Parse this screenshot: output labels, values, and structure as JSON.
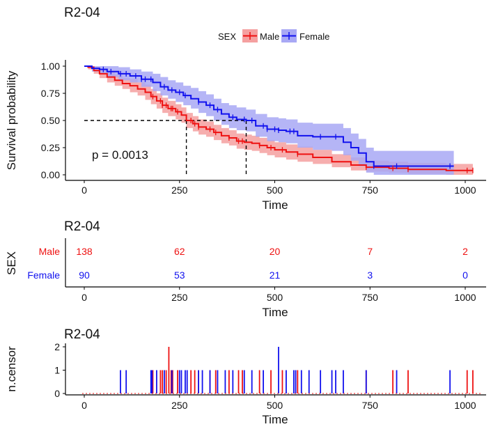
{
  "chart_data": [
    {
      "type": "line",
      "title": "R2-04",
      "xlabel": "Time",
      "ylabel": "Survival probability",
      "xlim": [
        -50,
        1030
      ],
      "ylim": [
        -0.03,
        1.03
      ],
      "xticks": [
        "0",
        "250",
        "500",
        "750",
        "1000"
      ],
      "yticks": [
        "0.00",
        "0.25",
        "0.50",
        "0.75",
        "1.00"
      ],
      "legend": {
        "title": "SEX",
        "position": "top",
        "items": [
          "Male",
          "Female"
        ]
      },
      "annotation": "p = 0.0013",
      "median_survival": {
        "Male": 268,
        "Female": 425,
        "level": 0.5
      },
      "series": [
        {
          "name": "Male",
          "color": "#ee1111",
          "band_color": "#f5a0a0",
          "x": [
            0,
            10,
            25,
            40,
            60,
            80,
            100,
            120,
            140,
            160,
            175,
            190,
            205,
            220,
            240,
            255,
            268,
            285,
            300,
            320,
            340,
            360,
            380,
            400,
            420,
            440,
            460,
            480,
            500,
            530,
            560,
            600,
            650,
            700,
            740,
            800,
            850,
            900,
            950,
            1000,
            1020
          ],
          "y": [
            1.0,
            0.99,
            0.96,
            0.93,
            0.9,
            0.87,
            0.84,
            0.82,
            0.79,
            0.76,
            0.72,
            0.68,
            0.64,
            0.61,
            0.58,
            0.55,
            0.5,
            0.47,
            0.44,
            0.42,
            0.39,
            0.36,
            0.34,
            0.31,
            0.3,
            0.29,
            0.27,
            0.25,
            0.23,
            0.21,
            0.19,
            0.16,
            0.12,
            0.09,
            0.07,
            0.06,
            0.05,
            0.05,
            0.04,
            0.04,
            0.04
          ],
          "lower": [
            1.0,
            0.97,
            0.93,
            0.89,
            0.85,
            0.82,
            0.79,
            0.76,
            0.73,
            0.69,
            0.65,
            0.61,
            0.57,
            0.54,
            0.51,
            0.48,
            0.43,
            0.4,
            0.37,
            0.35,
            0.32,
            0.29,
            0.27,
            0.24,
            0.23,
            0.22,
            0.2,
            0.18,
            0.16,
            0.14,
            0.12,
            0.1,
            0.07,
            0.04,
            0.03,
            0.02,
            0.01,
            0.01,
            0.0,
            0.0,
            0.0
          ],
          "upper": [
            1.0,
            1.0,
            0.99,
            0.97,
            0.95,
            0.92,
            0.89,
            0.88,
            0.85,
            0.83,
            0.79,
            0.75,
            0.71,
            0.68,
            0.65,
            0.62,
            0.57,
            0.54,
            0.51,
            0.49,
            0.46,
            0.43,
            0.41,
            0.38,
            0.37,
            0.36,
            0.34,
            0.32,
            0.3,
            0.28,
            0.26,
            0.23,
            0.19,
            0.16,
            0.13,
            0.12,
            0.11,
            0.11,
            0.1,
            0.1,
            0.1
          ],
          "censor_x": [
            180,
            200,
            205,
            215,
            228,
            232,
            245,
            280,
            290,
            300,
            330,
            345,
            380,
            405,
            415,
            460,
            490,
            520,
            560,
            740,
            810,
            850,
            1005,
            1020
          ]
        },
        {
          "name": "Female",
          "color": "#1111ee",
          "band_color": "#a8a8f5",
          "x": [
            0,
            20,
            40,
            60,
            90,
            120,
            150,
            180,
            200,
            220,
            240,
            260,
            280,
            300,
            320,
            340,
            360,
            380,
            400,
            425,
            450,
            480,
            510,
            530,
            560,
            600,
            650,
            680,
            700,
            720,
            740,
            760,
            800,
            850,
            900,
            950,
            970
          ],
          "y": [
            1.0,
            0.98,
            0.97,
            0.95,
            0.93,
            0.91,
            0.88,
            0.85,
            0.81,
            0.78,
            0.76,
            0.73,
            0.7,
            0.67,
            0.64,
            0.6,
            0.56,
            0.53,
            0.51,
            0.5,
            0.45,
            0.42,
            0.41,
            0.4,
            0.36,
            0.35,
            0.35,
            0.3,
            0.25,
            0.2,
            0.12,
            0.08,
            0.08,
            0.08,
            0.08,
            0.08,
            0.08
          ],
          "lower": [
            1.0,
            0.95,
            0.93,
            0.9,
            0.87,
            0.85,
            0.81,
            0.77,
            0.73,
            0.7,
            0.67,
            0.64,
            0.61,
            0.57,
            0.54,
            0.5,
            0.46,
            0.43,
            0.41,
            0.4,
            0.35,
            0.31,
            0.3,
            0.29,
            0.25,
            0.23,
            0.22,
            0.18,
            0.13,
            0.08,
            0.02,
            0.0,
            0.0,
            0.0,
            0.0,
            0.0,
            0.0
          ],
          "upper": [
            1.0,
            1.0,
            1.0,
            1.0,
            0.99,
            0.97,
            0.95,
            0.93,
            0.9,
            0.87,
            0.85,
            0.82,
            0.8,
            0.77,
            0.74,
            0.7,
            0.66,
            0.64,
            0.62,
            0.6,
            0.56,
            0.53,
            0.52,
            0.51,
            0.48,
            0.47,
            0.47,
            0.43,
            0.38,
            0.33,
            0.25,
            0.22,
            0.22,
            0.22,
            0.22,
            0.22,
            0.22
          ],
          "censor_x": [
            50,
            70,
            95,
            110,
            135,
            150,
            160,
            175,
            210,
            230,
            250,
            265,
            300,
            330,
            350,
            390,
            420,
            440,
            470,
            480,
            500,
            510,
            540,
            550,
            620,
            660,
            760,
            820,
            960
          ]
        }
      ]
    },
    {
      "type": "table",
      "title": "R2-04",
      "xlabel": "Time",
      "ylabel": "SEX",
      "xlim": [
        -50,
        1030
      ],
      "xticks": [
        "0",
        "250",
        "500",
        "750",
        "1000"
      ],
      "x": [
        0,
        250,
        500,
        750,
        1000
      ],
      "rows": [
        {
          "name": "Male",
          "color": "#ee1111",
          "values": [
            138,
            62,
            20,
            7,
            2
          ]
        },
        {
          "name": "Female",
          "color": "#1111ee",
          "values": [
            90,
            53,
            21,
            3,
            0
          ]
        }
      ]
    },
    {
      "type": "bar",
      "title": "R2-04",
      "xlabel": "Time",
      "ylabel": "n.censor",
      "xlim": [
        -50,
        1030
      ],
      "ylim": [
        -0.05,
        2.05
      ],
      "xticks": [
        "0",
        "250",
        "500",
        "750",
        "1000"
      ],
      "yticks": [
        "0",
        "1",
        "2"
      ],
      "series": [
        {
          "name": "Male",
          "color": "#ee1111",
          "x": [
            180,
            200,
            205,
            215,
            222,
            228,
            232,
            245,
            280,
            290,
            300,
            330,
            345,
            380,
            405,
            415,
            460,
            490,
            520,
            560,
            740,
            810,
            850,
            1005,
            1020
          ],
          "values": [
            1,
            1,
            1,
            1,
            2,
            1,
            1,
            1,
            1,
            1,
            1,
            1,
            1,
            1,
            1,
            1,
            1,
            1,
            1,
            1,
            1,
            1,
            1,
            1,
            1
          ]
        },
        {
          "name": "Female",
          "color": "#1111ee",
          "x": [
            95,
            110,
            175,
            178,
            190,
            210,
            230,
            250,
            255,
            265,
            270,
            300,
            310,
            330,
            350,
            370,
            390,
            420,
            440,
            470,
            510,
            530,
            550,
            555,
            570,
            590,
            620,
            650,
            660,
            680,
            740,
            820,
            960
          ],
          "values": [
            1,
            1,
            1,
            1,
            1,
            1,
            1,
            1,
            1,
            1,
            1,
            1,
            1,
            1,
            1,
            1,
            1,
            1,
            1,
            1,
            2,
            1,
            1,
            1,
            1,
            1,
            1,
            1,
            1,
            1,
            1,
            1,
            1
          ]
        }
      ]
    }
  ]
}
